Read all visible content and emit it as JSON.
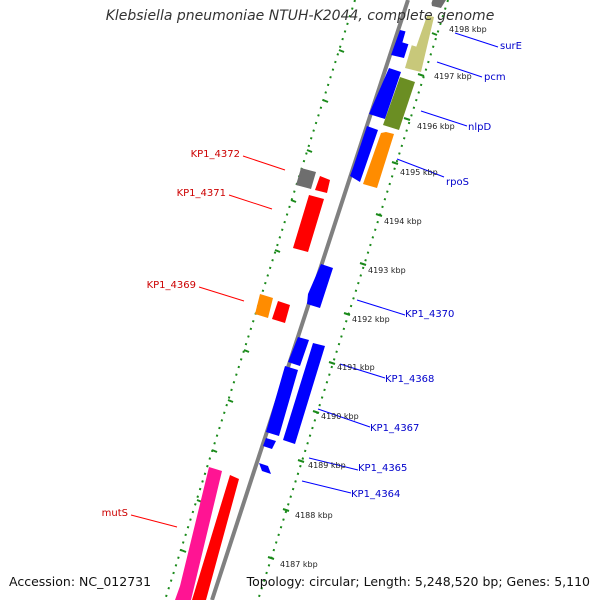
{
  "title": "Klebsiella pneumoniae NTUH-K2044, complete genome",
  "footer": {
    "accession": "Accession: NC_012731",
    "topology": "Topology: circular; Length: 5,248,520 bp; Genes: 5,110"
  },
  "ruler_labels": [
    "4198 kbp",
    "4197 kbp",
    "4196 kbp",
    "4195 kbp",
    "4194 kbp",
    "4193 kbp",
    "4192 kbp",
    "4191 kbp",
    "4190 kbp",
    "4189 kbp",
    "4188 kbp",
    "4187 kbp"
  ],
  "forward_labels": [
    "surE",
    "pcm",
    "nlpD",
    "rpoS",
    "KP1_4370",
    "KP1_4368",
    "KP1_4367",
    "KP1_4365",
    "KP1_4364"
  ],
  "reverse_labels": [
    "KP1_4372",
    "KP1_4371",
    "KP1_4369",
    "mutS"
  ],
  "colors": {
    "forward_label": "#0000cc",
    "reverse_label": "#cc0000",
    "backbone": "#808080",
    "ruler_dots": "#1a8a1a",
    "blue_gene": "#0000ff",
    "red_gene": "#ff0000",
    "olive_gene": "#6b8e23",
    "khaki_gene": "#c8c87a",
    "orange_gene": "#ff8c00",
    "gray_gene": "#6e6e6e",
    "pink_gene": "#ff1493"
  }
}
